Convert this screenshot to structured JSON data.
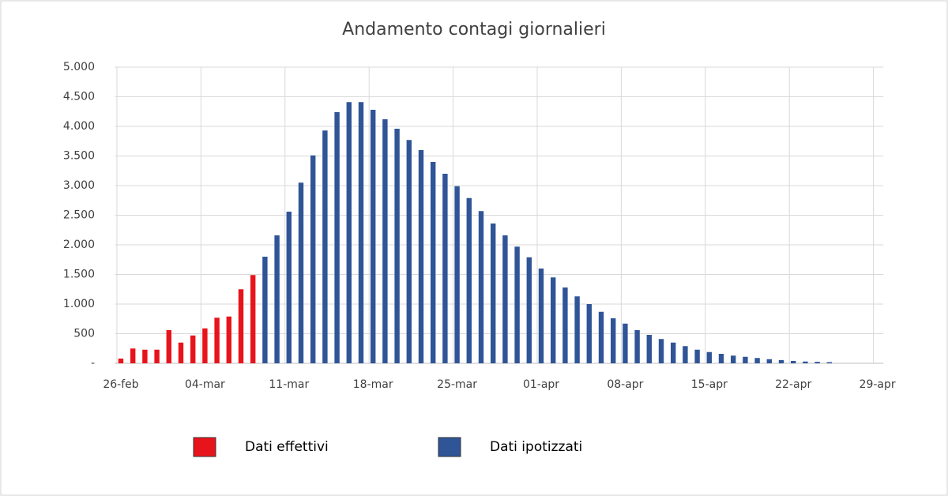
{
  "chart_data": {
    "type": "bar",
    "title": "Andamento contagi giornalieri",
    "categories": [
      "26-feb",
      null,
      null,
      null,
      null,
      null,
      null,
      "04-mar",
      null,
      null,
      null,
      null,
      null,
      null,
      "11-mar",
      null,
      null,
      null,
      null,
      null,
      null,
      "18-mar",
      null,
      null,
      null,
      null,
      null,
      null,
      "25-mar",
      null,
      null,
      null,
      null,
      null,
      null,
      "01-apr",
      null,
      null,
      null,
      null,
      null,
      null,
      "08-apr",
      null,
      null,
      null,
      null,
      null,
      null,
      "15-apr",
      null,
      null,
      null,
      null,
      null,
      null,
      "22-apr",
      null,
      null,
      null,
      null,
      null,
      null,
      "29-apr"
    ],
    "series": [
      {
        "name": "Dati effettivi",
        "color": "#e8141b",
        "values": [
          80,
          250,
          230,
          230,
          560,
          350,
          470,
          590,
          770,
          790,
          1250,
          1490,
          null,
          null,
          null,
          null,
          null,
          null,
          null,
          null,
          null,
          null,
          null,
          null,
          null,
          null,
          null,
          null,
          null,
          null,
          null,
          null,
          null,
          null,
          null,
          null,
          null,
          null,
          null,
          null,
          null,
          null,
          null,
          null,
          null,
          null,
          null,
          null,
          null,
          null,
          null,
          null,
          null,
          null,
          null,
          null,
          null,
          null,
          null,
          null,
          null,
          null,
          null,
          null
        ]
      },
      {
        "name": "Dati ipotizzati",
        "color": "#2f5597",
        "values": [
          null,
          null,
          null,
          null,
          null,
          null,
          null,
          null,
          null,
          null,
          null,
          null,
          1800,
          2160,
          2560,
          3050,
          3510,
          3930,
          4240,
          4410,
          4410,
          4280,
          4120,
          3960,
          3770,
          3600,
          3400,
          3200,
          2990,
          2790,
          2570,
          2360,
          2160,
          1970,
          1790,
          1600,
          1450,
          1280,
          1130,
          1000,
          870,
          760,
          670,
          560,
          480,
          410,
          350,
          290,
          230,
          190,
          160,
          130,
          110,
          90,
          70,
          55,
          40,
          30,
          25,
          20,
          null,
          null,
          null,
          null
        ]
      }
    ],
    "ylim": [
      0,
      5000
    ],
    "yticks": [
      {
        "value": 0,
        "label": "-"
      },
      {
        "value": 500,
        "label": "500"
      },
      {
        "value": 1000,
        "label": "1.000"
      },
      {
        "value": 1500,
        "label": "1.500"
      },
      {
        "value": 2000,
        "label": "2.000"
      },
      {
        "value": 2500,
        "label": "2.500"
      },
      {
        "value": 3000,
        "label": "3.000"
      },
      {
        "value": 3500,
        "label": "3.500"
      },
      {
        "value": 4000,
        "label": "4.000"
      },
      {
        "value": 4500,
        "label": "4.500"
      },
      {
        "value": 5000,
        "label": "5.000"
      }
    ],
    "grid": true,
    "legend": "bottom"
  }
}
